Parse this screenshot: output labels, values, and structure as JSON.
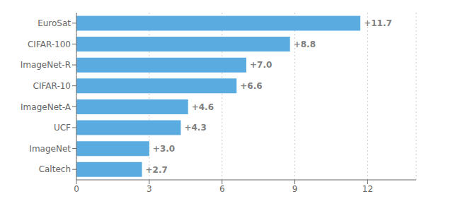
{
  "chart_data": {
    "type": "bar",
    "orientation": "horizontal",
    "categories": [
      "EuroSat",
      "CIFAR-100",
      "ImageNet-R",
      "CIFAR-10",
      "ImageNet-A",
      "UCF",
      "ImageNet",
      "Caltech"
    ],
    "values": [
      11.7,
      8.8,
      7.0,
      6.6,
      4.6,
      4.3,
      3.0,
      2.7
    ],
    "value_labels": [
      "+11.7",
      "+8.8",
      "+7.0",
      "+6.6",
      "+4.6",
      "+4.3",
      "+3.0",
      "+2.7"
    ],
    "color": "#5aace0",
    "xlim": [
      0,
      14
    ],
    "xticks": [
      0,
      3,
      6,
      9,
      12
    ],
    "grid": true,
    "data_labels": true
  }
}
